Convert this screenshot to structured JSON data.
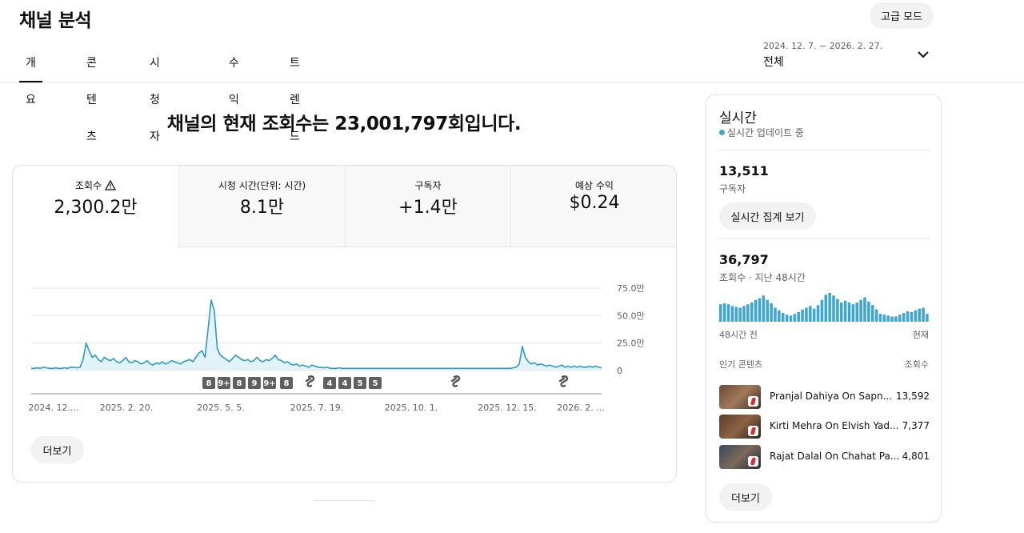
{
  "header": {
    "title": "채널 분석",
    "advanced_mode": "고급 모드"
  },
  "tabs": [
    {
      "label": "개요",
      "active": true
    },
    {
      "label": "콘텐츠",
      "active": false
    },
    {
      "label": "시청자층",
      "active": false
    },
    {
      "label": "수익",
      "active": false
    },
    {
      "label": "트렌드",
      "active": false
    }
  ],
  "date_range": {
    "range": "2024. 12. 7. ~ 2026. 2. 27.",
    "label": "전체"
  },
  "headline": "채널의 현재 조회수는 23,001,797회입니다.",
  "metrics": [
    {
      "label": "조회수",
      "value": "2,300.2만",
      "warning": true
    },
    {
      "label": "시청 시간(단위: 시간)",
      "value": "8.1만"
    },
    {
      "label": "구독자",
      "value": "+1.4만"
    },
    {
      "label": "예상 수익",
      "value": "$0.24"
    }
  ],
  "chart_data": {
    "type": "area",
    "series": [
      {
        "values": [
          2,
          2,
          2.5,
          2,
          3,
          2.5,
          2,
          2,
          2.5,
          2,
          2,
          2.5,
          2,
          3,
          3,
          2.5,
          3,
          10,
          25,
          18,
          12,
          14,
          10,
          8,
          12,
          10,
          9,
          11,
          8,
          7,
          9,
          12,
          8,
          7,
          9,
          8,
          6,
          7,
          9,
          6,
          5,
          7,
          6,
          8,
          6,
          7,
          9,
          8,
          7,
          6,
          8,
          9,
          10,
          8,
          12,
          16,
          18,
          12,
          38,
          64,
          55,
          20,
          14,
          12,
          10,
          8,
          11,
          14,
          12,
          10,
          9,
          10,
          8,
          9,
          12,
          9,
          8,
          10,
          9,
          11,
          14,
          10,
          9,
          7,
          8,
          6,
          5,
          6,
          4,
          5,
          4,
          3,
          5,
          4,
          3,
          3,
          2.5,
          3,
          2,
          2,
          2,
          2.5,
          2,
          2,
          2,
          2,
          2,
          2,
          2,
          2,
          2,
          2,
          2,
          2,
          2,
          2,
          2,
          2,
          2,
          2,
          2,
          2,
          2,
          2,
          2,
          2,
          2,
          2,
          2,
          2,
          2,
          2,
          2,
          2,
          2,
          2,
          2,
          2,
          2,
          2,
          2,
          2,
          2,
          2,
          2,
          2,
          2,
          2,
          2,
          2,
          2,
          2,
          2,
          2,
          2,
          2,
          2,
          2,
          2.5,
          3,
          6,
          22,
          12,
          8,
          6,
          7,
          5,
          6,
          5,
          4,
          5,
          4,
          3,
          4,
          5,
          3,
          4,
          3,
          4,
          3,
          4,
          3,
          3,
          4,
          3,
          4,
          3,
          2.5
        ]
      }
    ],
    "x_tick_labels": [
      "2024. 12....",
      "2025. 2. 20.",
      "2025. 5. 5.",
      "2025. 7. 19.",
      "2025. 10. 1.",
      "2025. 12. 15.",
      "2026. 2. ..."
    ],
    "y_tick_labels": [
      "75.0만",
      "50.0만",
      "25.0만",
      "0"
    ],
    "ylim": [
      0,
      75
    ],
    "upload_markers": [
      "8",
      "9+",
      "8",
      "9",
      "9+",
      "8",
      "shorts",
      "4",
      "4",
      "5",
      "5",
      "shorts",
      "shorts"
    ]
  },
  "main_more": "더보기",
  "realtime": {
    "title": "실시간",
    "status": "실시간 업데이트 중",
    "subscribers": "13,511",
    "subscribers_label": "구독자",
    "aggregate_button": "실시간 집계 보기",
    "views": "36,797",
    "views_label": "조회수 · 지난 48시간",
    "bars": [
      20,
      21,
      20,
      18,
      17,
      16,
      18,
      20,
      22,
      25,
      27,
      30,
      25,
      21,
      16,
      13,
      10,
      8,
      7,
      9,
      11,
      14,
      16,
      18,
      15,
      19,
      25,
      31,
      33,
      30,
      26,
      22,
      24,
      22,
      20,
      22,
      25,
      28,
      23,
      19,
      14,
      9,
      8,
      7,
      6,
      6,
      8,
      10,
      12,
      11,
      13,
      15,
      16,
      9
    ],
    "axis_left": "48시간 전",
    "axis_right": "현재",
    "popular_header": "인기 콘텐츠",
    "popular_views_header": "조회수",
    "popular": [
      {
        "title": "Pranjal Dahiya On Sapn...",
        "views": "13,592"
      },
      {
        "title": "Kirti Mehra On Elvish Yad...",
        "views": "7,377"
      },
      {
        "title": "Rajat Dalal On Chahat Pa...",
        "views": "4,801"
      }
    ],
    "more": "더보기"
  },
  "colors": {
    "line": "#2a9ac8",
    "fill": "#e3f3fa",
    "live": "#3ea6d4",
    "bars": "#3ea6d4"
  }
}
